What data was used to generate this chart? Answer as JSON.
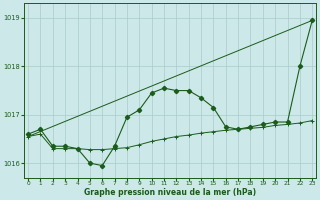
{
  "xlabel": "Graphe pression niveau de la mer (hPa)",
  "background_color": "#cce8e8",
  "grid_color": "#aacccc",
  "line_color": "#1a5c1a",
  "x_values": [
    0,
    1,
    2,
    3,
    4,
    5,
    6,
    7,
    8,
    9,
    10,
    11,
    12,
    13,
    14,
    15,
    16,
    17,
    18,
    19,
    20,
    21,
    22,
    23
  ],
  "series1": [
    1016.6,
    1016.7,
    1016.35,
    1016.35,
    1016.3,
    1016.0,
    1015.95,
    1016.35,
    1016.95,
    1017.1,
    1017.45,
    1017.55,
    1017.5,
    1017.5,
    1017.35,
    1017.15,
    1016.75,
    1016.7,
    1016.75,
    1016.8,
    1016.85,
    1016.85,
    1018.0,
    1018.95
  ],
  "series2": [
    1016.55,
    1016.6,
    1016.3,
    1016.3,
    1016.3,
    1016.28,
    1016.28,
    1016.3,
    1016.32,
    1016.38,
    1016.45,
    1016.5,
    1016.55,
    1016.58,
    1016.62,
    1016.65,
    1016.68,
    1016.7,
    1016.72,
    1016.74,
    1016.78,
    1016.8,
    1016.83,
    1016.88
  ],
  "series3_x": [
    0,
    23
  ],
  "series3_y": [
    1016.55,
    1018.95
  ],
  "ylim": [
    1015.7,
    1019.3
  ],
  "yticks": [
    1016,
    1017,
    1018,
    1019
  ],
  "xticks": [
    0,
    1,
    2,
    3,
    4,
    5,
    6,
    7,
    8,
    9,
    10,
    11,
    12,
    13,
    14,
    15,
    16,
    17,
    18,
    19,
    20,
    21,
    22,
    23
  ]
}
